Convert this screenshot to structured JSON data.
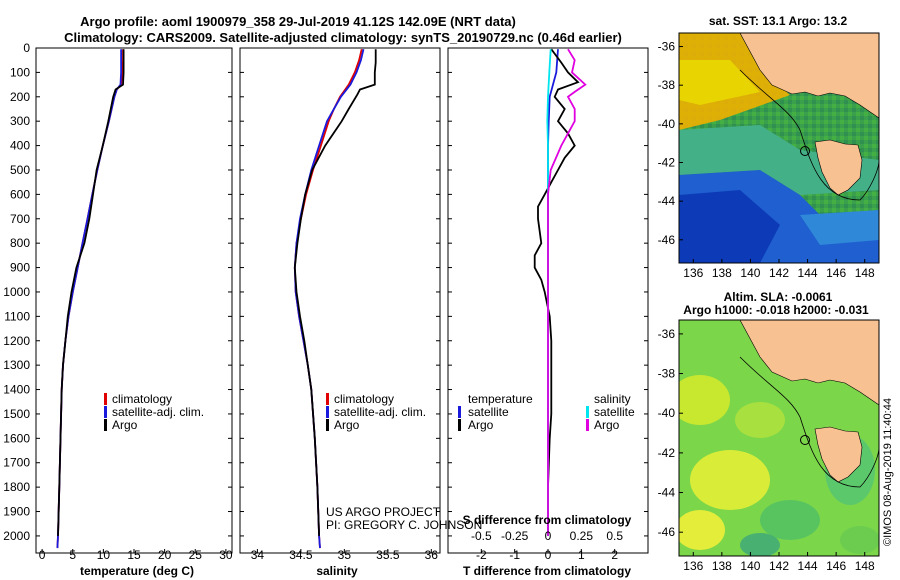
{
  "title": {
    "line1": "Argo profile: aoml 1900979_358 29-Jul-2019 41.12S 142.09E (NRT data)",
    "line2": "Climatology: CARS2009. Satellite-adjusted climatology: synTS_20190729.nc (0.46d earlier)"
  },
  "colors": {
    "climatology": "#e00000",
    "satellite": "#1a1adc",
    "argo": "#000000",
    "sat_s_diff": "#00e5ee",
    "argo_s_diff": "#e000e0",
    "land": "#f7c191"
  },
  "legend": {
    "climatology": "climatology",
    "satellite": "satellite-adj. clim.",
    "argo": "Argo",
    "temperature": "temperature",
    "salinity": "salinity",
    "satellite_short": "satellite",
    "argo_short": "Argo"
  },
  "credit": {
    "line1": "US ARGO PROJECT",
    "line2": "PI: GREGORY C. JOHNSON"
  },
  "maps": {
    "sst_title": "sat. SST: 13.1 Argo: 13.2",
    "sla_title1": "Altim. SLA: -0.0061",
    "sla_title2": "Argo h1000: -0.018 h2000: -0.031",
    "stamp": "©IMOS 08-Aug-2019 11:40:44",
    "lon_ticks": [
      "136",
      "138",
      "140",
      "142",
      "144",
      "146",
      "148"
    ],
    "lat_ticks": [
      "-36",
      "-38",
      "-40",
      "-42",
      "-44",
      "-46"
    ]
  },
  "chart_data": [
    {
      "type": "line",
      "xlabel": "temperature (deg C)",
      "ylabel": "",
      "xlim": [
        -1,
        31
      ],
      "ylim": [
        2070,
        0
      ],
      "x_ticks": [
        "0",
        "5",
        "10",
        "15",
        "20",
        "25",
        "30"
      ],
      "y_ticks": [
        "0",
        "100",
        "200",
        "300",
        "400",
        "500",
        "600",
        "700",
        "800",
        "900",
        "1000",
        "1100",
        "1200",
        "1300",
        "1400",
        "1500",
        "1600",
        "1700",
        "1800",
        "1900",
        "2000"
      ],
      "series": [
        {
          "name": "climatology",
          "depth": [
            5,
            50,
            100,
            150,
            170,
            200,
            300,
            400,
            500,
            600,
            700,
            800,
            900,
            1000,
            1100,
            1200,
            1300,
            1400,
            1600,
            1800,
            2000,
            2050
          ],
          "values": [
            13.2,
            13.2,
            13.1,
            12.9,
            12.2,
            11.8,
            10.9,
            9.9,
            9.0,
            8.2,
            7.4,
            6.6,
            5.8,
            5.0,
            4.3,
            3.8,
            3.4,
            3.2,
            3.0,
            2.8,
            2.6,
            2.5
          ]
        },
        {
          "name": "satellite-adj. clim.",
          "depth": [
            5,
            50,
            100,
            150,
            170,
            200,
            300,
            400,
            500,
            600,
            700,
            800,
            900,
            1000,
            1100,
            1200,
            1300,
            1400,
            1600,
            1800,
            2000,
            2050
          ],
          "values": [
            12.9,
            12.9,
            12.9,
            12.8,
            12.2,
            11.8,
            10.9,
            9.9,
            9.0,
            8.2,
            7.4,
            6.6,
            5.8,
            5.0,
            4.3,
            3.8,
            3.4,
            3.2,
            3.0,
            2.8,
            2.6,
            2.5
          ]
        },
        {
          "name": "Argo",
          "depth": [
            5,
            50,
            100,
            150,
            170,
            200,
            300,
            400,
            500,
            600,
            700,
            800,
            900,
            1000,
            1100,
            1200,
            1300,
            1400,
            1600,
            1800,
            2000
          ],
          "values": [
            13.3,
            13.3,
            13.3,
            13.2,
            12.0,
            11.6,
            10.8,
            9.9,
            8.9,
            8.3,
            7.7,
            6.9,
            5.6,
            4.8,
            4.2,
            3.8,
            3.4,
            3.2,
            3.0,
            2.8,
            2.6
          ]
        }
      ]
    },
    {
      "type": "line",
      "xlabel": "salinity",
      "ylabel": "",
      "xlim": [
        33.8,
        36.1
      ],
      "ylim": [
        2070,
        0
      ],
      "x_ticks": [
        "34",
        "34.5",
        "35",
        "35.5",
        "36"
      ],
      "series": [
        {
          "name": "climatology",
          "depth": [
            5,
            50,
            100,
            150,
            200,
            250,
            300,
            400,
            500,
            600,
            700,
            800,
            900,
            1000,
            1100,
            1200,
            1300,
            1400,
            1600,
            1800,
            2000,
            2050
          ],
          "values": [
            35.2,
            35.17,
            35.12,
            35.05,
            34.95,
            34.88,
            34.82,
            34.73,
            34.64,
            34.56,
            34.5,
            34.45,
            34.43,
            34.44,
            34.48,
            34.53,
            34.58,
            34.62,
            34.66,
            34.69,
            34.71,
            34.72
          ]
        },
        {
          "name": "satellite-adj. clim.",
          "depth": [
            5,
            50,
            100,
            150,
            200,
            250,
            300,
            400,
            500,
            600,
            700,
            800,
            900,
            1000,
            1100,
            1200,
            1300,
            1400,
            1600,
            1800,
            2000,
            2050
          ],
          "values": [
            35.22,
            35.19,
            35.14,
            35.07,
            34.96,
            34.88,
            34.8,
            34.71,
            34.62,
            34.55,
            34.49,
            34.45,
            34.43,
            34.44,
            34.48,
            34.53,
            34.58,
            34.62,
            34.66,
            34.69,
            34.71,
            34.72
          ]
        },
        {
          "name": "Argo",
          "depth": [
            5,
            60,
            100,
            150,
            170,
            190,
            250,
            300,
            400,
            500,
            600,
            700,
            800,
            900,
            1000,
            1100,
            1200,
            1300,
            1400,
            1600,
            1800,
            2000
          ],
          "values": [
            35.36,
            35.36,
            35.35,
            35.35,
            35.18,
            35.15,
            35.05,
            34.97,
            34.78,
            34.63,
            34.55,
            34.5,
            34.46,
            34.43,
            34.45,
            34.49,
            34.54,
            34.58,
            34.62,
            34.66,
            34.69,
            34.71
          ]
        }
      ]
    },
    {
      "type": "line",
      "xlabel": "T difference from climatology",
      "x2label": "S difference from climatology",
      "xlim": [
        -3,
        3
      ],
      "ylim": [
        2070,
        0
      ],
      "x_ticks": [
        "-2",
        "-1",
        "0",
        "1",
        "2"
      ],
      "x2_ticks": [
        "-0.5",
        "-0.25",
        "0",
        "0.25",
        "0.5"
      ],
      "series": [
        {
          "name": "temperature satellite",
          "depth": [
            5,
            100,
            200,
            300,
            400,
            500,
            600,
            700,
            800,
            900,
            1000,
            1200,
            1400,
            1600,
            1800,
            2000
          ],
          "values": [
            0.3,
            0.25,
            0.05,
            0.02,
            0.0,
            0.0,
            0.0,
            0.0,
            0.0,
            0.0,
            0.0,
            0.0,
            0.0,
            0.0,
            0.0,
            0.0
          ]
        },
        {
          "name": "temperature Argo",
          "depth": [
            5,
            60,
            100,
            140,
            170,
            200,
            250,
            300,
            350,
            400,
            450,
            500,
            550,
            600,
            650,
            700,
            800,
            850,
            900,
            950,
            1000,
            1100,
            1200,
            1300,
            1400,
            1500,
            1600,
            1800,
            2000
          ],
          "values": [
            0.1,
            0.4,
            0.6,
            0.9,
            0.3,
            0.2,
            0.5,
            0.3,
            0.6,
            0.8,
            0.5,
            0.3,
            0.1,
            -0.1,
            -0.3,
            -0.3,
            -0.2,
            -0.4,
            -0.4,
            -0.2,
            -0.1,
            0.05,
            0.1,
            0.1,
            0.1,
            0.1,
            0.05,
            0.0,
            0.0
          ]
        },
        {
          "name": "salinity satellite",
          "depth": [
            5,
            100,
            200,
            300,
            400,
            500,
            600,
            700,
            800,
            900,
            1000,
            1200,
            1400,
            1600,
            1800,
            2000
          ],
          "values": [
            0.02,
            0.01,
            0.0,
            -0.005,
            0.0,
            0.0,
            0.0,
            0.0,
            0.0,
            0.0,
            0.0,
            0.0,
            0.0,
            0.0,
            0.0,
            0.0
          ]
        },
        {
          "name": "salinity Argo",
          "depth": [
            5,
            50,
            100,
            150,
            180,
            200,
            250,
            300,
            400,
            500,
            600,
            700,
            800,
            1000,
            1200,
            1400,
            1600,
            1800,
            2000
          ],
          "values": [
            0.15,
            0.2,
            0.18,
            0.28,
            0.2,
            0.15,
            0.2,
            0.2,
            0.1,
            0.02,
            0.0,
            0.0,
            0.0,
            0.0,
            0.0,
            0.0,
            0.0,
            0.0,
            0.0
          ]
        }
      ]
    }
  ]
}
